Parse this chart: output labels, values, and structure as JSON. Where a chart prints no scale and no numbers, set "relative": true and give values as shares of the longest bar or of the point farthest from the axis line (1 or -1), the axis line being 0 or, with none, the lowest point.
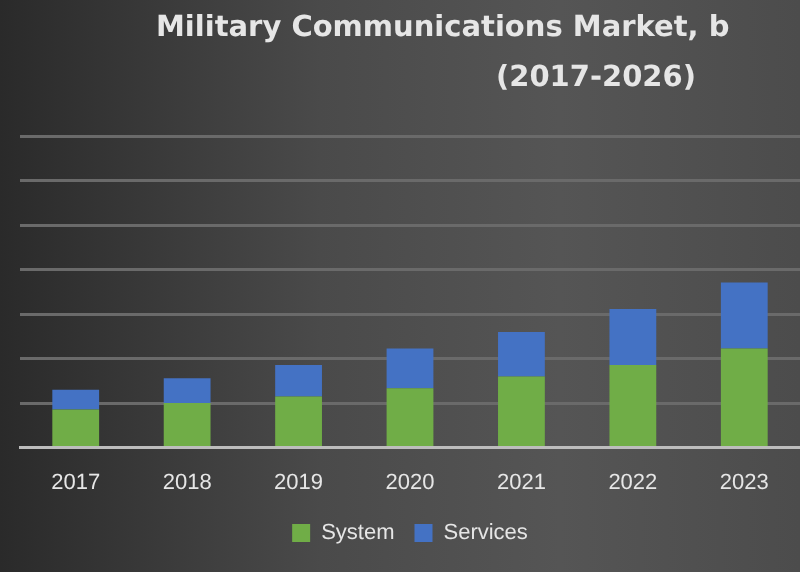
{
  "chart_data": {
    "type": "bar",
    "title": "Military Communications Market, b",
    "subtitle": "(2017-2026)",
    "categories": [
      "2017",
      "2018",
      "2019",
      "2020",
      "2021",
      "2022",
      "2023"
    ],
    "stacked": true,
    "relative": true,
    "grid": "y",
    "legend": "bottom",
    "series": [
      {
        "name": "System",
        "color": "#70ad47",
        "values": [
          0.23,
          0.27,
          0.31,
          0.36,
          0.43,
          0.5,
          0.6
        ]
      },
      {
        "name": "Services",
        "color": "#4472c4",
        "values": [
          0.12,
          0.15,
          0.19,
          0.24,
          0.27,
          0.34,
          0.4
        ]
      }
    ]
  }
}
